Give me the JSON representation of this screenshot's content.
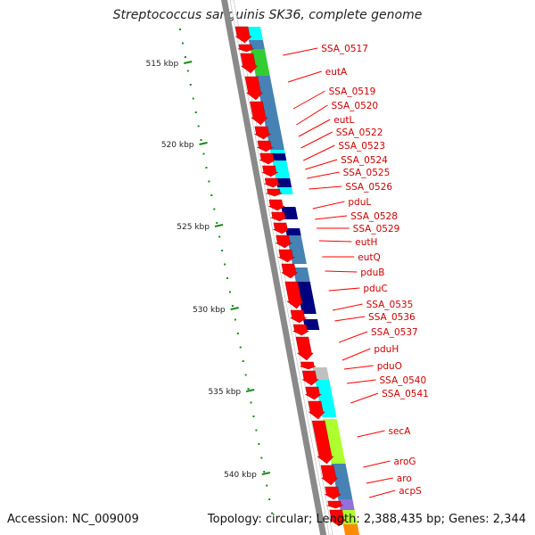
{
  "title": "Streptococcus sanguinis SK36, complete genome",
  "accession_label": "Accession: NC_009009",
  "stats_label": "Topology: circular; Length: 2,388,435 bp; Genes: 2,344",
  "colors": {
    "gene_arrow": "#ff0000",
    "label": "#cc0000",
    "tick": "#1a8a1a",
    "backbone": "#808080",
    "feature_palette": [
      "#00ffff",
      "#4682b4",
      "#32cd32",
      "#000080",
      "#adff2f",
      "#c0c0c0",
      "#9370db",
      "#ff8c00"
    ]
  },
  "scale_ticks": [
    "515 kbp",
    "520 kbp",
    "525 kbp",
    "530 kbp",
    "535 kbp",
    "540 kbp"
  ],
  "gene_labels": [
    "SSA_0517",
    "eutA",
    "SSA_0519",
    "SSA_0520",
    "eutL",
    "SSA_0522",
    "SSA_0523",
    "SSA_0524",
    "SSA_0525",
    "SSA_0526",
    "pduL",
    "SSA_0528",
    "SSA_0529",
    "eutH",
    "eutQ",
    "pduB",
    "pduC",
    "SSA_0535",
    "SSA_0536",
    "SSA_0537",
    "pduH",
    "pduO",
    "SSA_0540",
    "SSA_0541",
    "secA",
    "aroG",
    "aro",
    "acpS"
  ]
}
